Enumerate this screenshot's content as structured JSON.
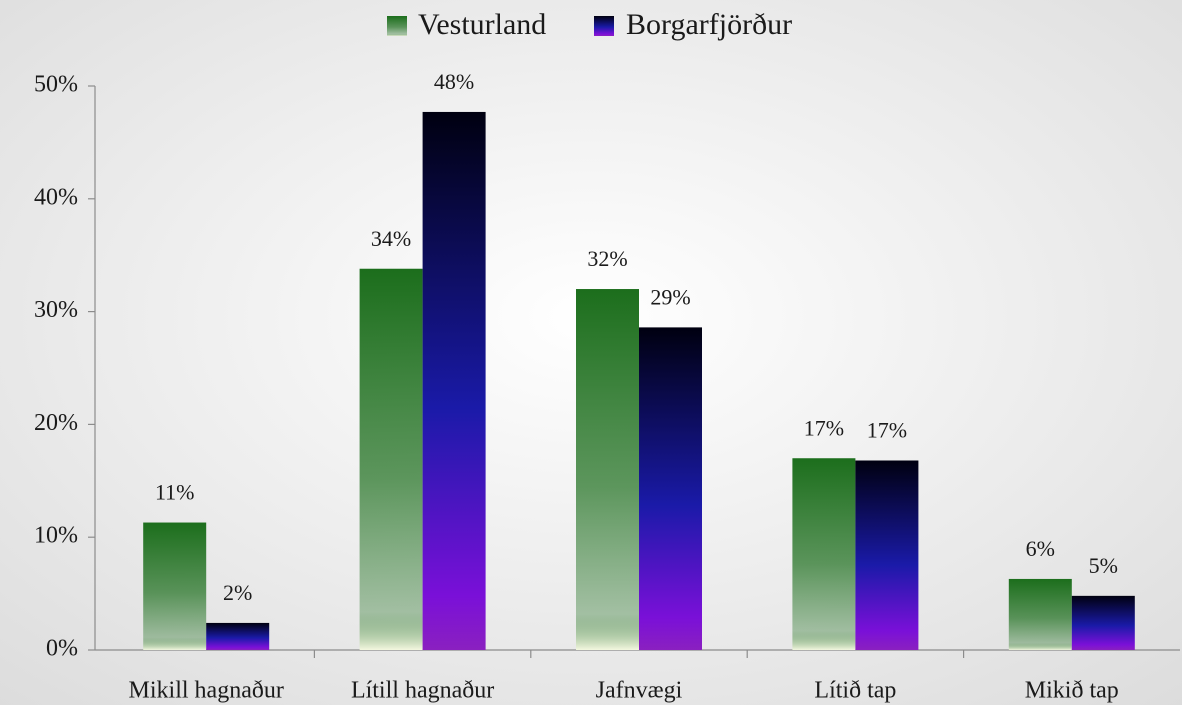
{
  "chart_data": {
    "type": "bar",
    "categories": [
      "Mikill hagnaður",
      "Lítill hagnaður",
      "Jafnvægi",
      "Lítið tap",
      "Mikið tap"
    ],
    "series": [
      {
        "name": "Vesturland",
        "color": "#1c6e1c",
        "values": [
          11.3,
          33.8,
          32.0,
          17.0,
          6.3
        ],
        "value_labels": [
          "11%",
          "34%",
          "32%",
          "17%",
          "6%"
        ]
      },
      {
        "name": "Borgarfjörður",
        "color": "#1a1aa8",
        "values": [
          2.4,
          47.7,
          28.6,
          16.8,
          4.8
        ],
        "value_labels": [
          "2%",
          "48%",
          "29%",
          "17%",
          "5%"
        ]
      }
    ],
    "ylim": [
      0,
      50
    ],
    "yticks": [
      {
        "value": 0,
        "label": "0%"
      },
      {
        "value": 10,
        "label": "10%"
      },
      {
        "value": 20,
        "label": "20%"
      },
      {
        "value": 30,
        "label": "30%"
      },
      {
        "value": 40,
        "label": "40%"
      },
      {
        "value": 50,
        "label": "50%"
      }
    ],
    "legend": "top"
  }
}
